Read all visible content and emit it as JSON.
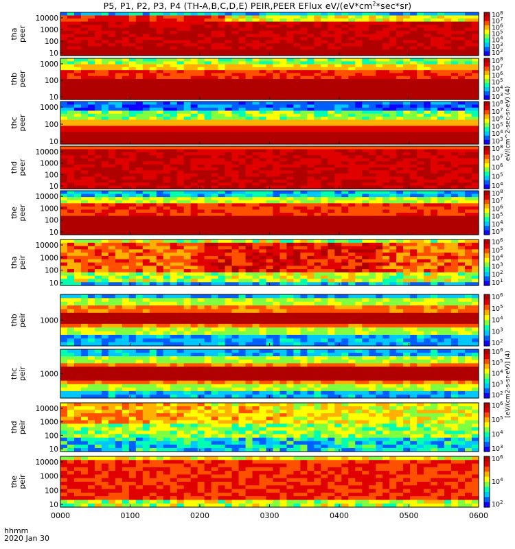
{
  "title": "P5, P1, P2, P3, P4 (TH-A,B,C,D,E) PEIR,PEER EFlux eV/(eV*cm^2*sec*sr)",
  "title_parts": {
    "pre": "P5, P1, P2, P3, P4 (TH-A,B,C,D,E) PEIR,PEER EFlux eV/(eV*cm",
    "sup": "2",
    "post": "*sec*sr)"
  },
  "x_axis": {
    "label_line1": "hhmm",
    "label_line2": "2020 Jan 30",
    "ticks": [
      "0000",
      "0100",
      "0200",
      "0300",
      "0400",
      "0500",
      "0600"
    ]
  },
  "colorbar_label_electron": "eV/(cm^2-sec-sr-eV) (4)",
  "colorbar_label_ion": "[eV/(cm2-s-sr-eV)] (4)",
  "colors": {
    "palette": [
      "#1000ff",
      "#0060ff",
      "#00c8ff",
      "#00ffb0",
      "#80ff40",
      "#ffff00",
      "#ffb000",
      "#ff5000",
      "#e00000",
      "#b00000"
    ]
  },
  "chart_data": {
    "type": "heatmap",
    "x_range_hours": [
      0,
      6
    ],
    "date": "2020 Jan 30",
    "panels": [
      {
        "name": "tha peer",
        "ylabel": [
          "tha",
          "peer"
        ],
        "yticks": [
          "10000",
          "1000",
          "100",
          "10"
        ],
        "colorbar_ticks": [
          "10^8",
          "10^7",
          "10^6",
          "10^5",
          "10^4",
          "10^3",
          "10^2"
        ]
      },
      {
        "name": "thb peer",
        "ylabel": [
          "thb",
          "peer"
        ],
        "yticks": [
          "1000",
          "100",
          "10"
        ],
        "colorbar_ticks": [
          "10^8",
          "10^7",
          "10^6",
          "10^5",
          "10^4",
          "10^3"
        ]
      },
      {
        "name": "thc peer",
        "ylabel": [
          "thc",
          "peer"
        ],
        "yticks": [
          "1000",
          "100",
          "10"
        ],
        "colorbar_ticks": [
          "10^8",
          "10^7",
          "10^6",
          "10^5",
          "10^4",
          "10^3"
        ]
      },
      {
        "name": "thd peer",
        "ylabel": [
          "thd",
          "peer"
        ],
        "yticks": [
          "10000",
          "1000",
          "100",
          "10"
        ],
        "colorbar_ticks": [
          "10^8",
          "10^7",
          "10^6",
          "10^5",
          "10^4"
        ]
      },
      {
        "name": "the peer",
        "ylabel": [
          "the",
          "peer"
        ],
        "yticks": [
          "10000",
          "1000",
          "100",
          "10"
        ],
        "colorbar_ticks": [
          "10^8",
          "10^7",
          "10^6",
          "10^5",
          "10^4",
          "10^3"
        ]
      },
      {
        "name": "tha peir",
        "ylabel": [
          "tha",
          "peir"
        ],
        "yticks": [
          "10000",
          "1000",
          "100",
          "10"
        ],
        "colorbar_ticks": [
          "10^6",
          "10^5",
          "10^4",
          "10^3",
          "10^2",
          "10^1"
        ]
      },
      {
        "name": "thb peir",
        "ylabel": [
          "thb",
          "peir"
        ],
        "yticks": [
          "1000"
        ],
        "colorbar_ticks": [
          "10^6",
          "10^5",
          "10^4",
          "10^3",
          "10^2"
        ]
      },
      {
        "name": "thc peir",
        "ylabel": [
          "thc",
          "peir"
        ],
        "yticks": [
          "1000"
        ],
        "colorbar_ticks": [
          "10^6",
          "10^5",
          "10^4",
          "10^3",
          "10^2"
        ]
      },
      {
        "name": "thd peir",
        "ylabel": [
          "thd",
          "peir"
        ],
        "yticks": [
          "10000",
          "1000",
          "100",
          "10"
        ],
        "colorbar_ticks": [
          "10^6",
          "10^5",
          "10^4",
          "10^3"
        ]
      },
      {
        "name": "the peir",
        "ylabel": [
          "the",
          "peir"
        ],
        "yticks": [
          "10000",
          "1000",
          "100",
          "10"
        ],
        "colorbar_ticks": [
          "10^6",
          "10^4",
          "10^2"
        ]
      }
    ]
  }
}
